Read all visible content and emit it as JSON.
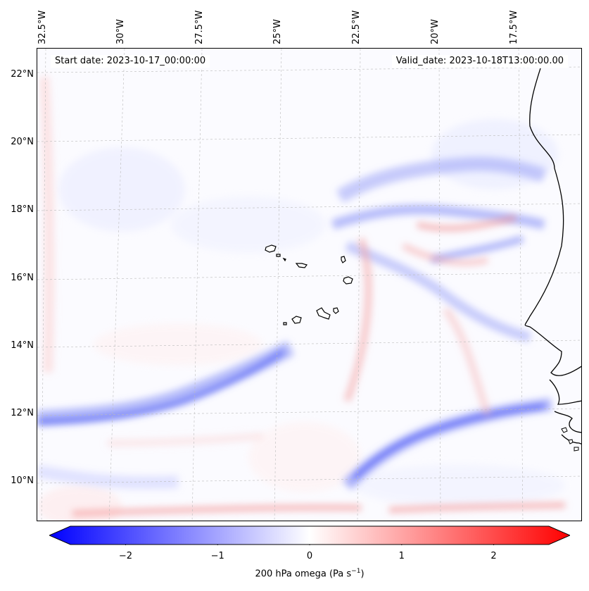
{
  "header": {
    "start_date": "Start date: 2023-10-17_00:00:00",
    "valid_date": "Valid_date: 2023-10-18T13:00:00.00"
  },
  "longitude_labels": [
    "32.5°W",
    "30°W",
    "27.5°W",
    "25°W",
    "22.5°W",
    "20°W",
    "17.5°W"
  ],
  "latitude_labels": [
    "22°N",
    "20°N",
    "18°N",
    "16°N",
    "14°N",
    "12°N",
    "10°N"
  ],
  "colorbar": {
    "ticks": [
      "−2",
      "−1",
      "0",
      "1",
      "2"
    ],
    "tick_values": [
      -2,
      -1,
      0,
      1,
      2
    ],
    "range": [
      -2.6,
      2.6
    ],
    "colors": {
      "min": "#0000ff",
      "mid": "#ffffff",
      "max": "#ff0000"
    },
    "label_main": "200 hPa omega (Pa s",
    "label_sup": "−1",
    "label_close": ")"
  },
  "field_colors": {
    "ascent": "#4a56f0",
    "descent": "#f07a7a"
  }
}
